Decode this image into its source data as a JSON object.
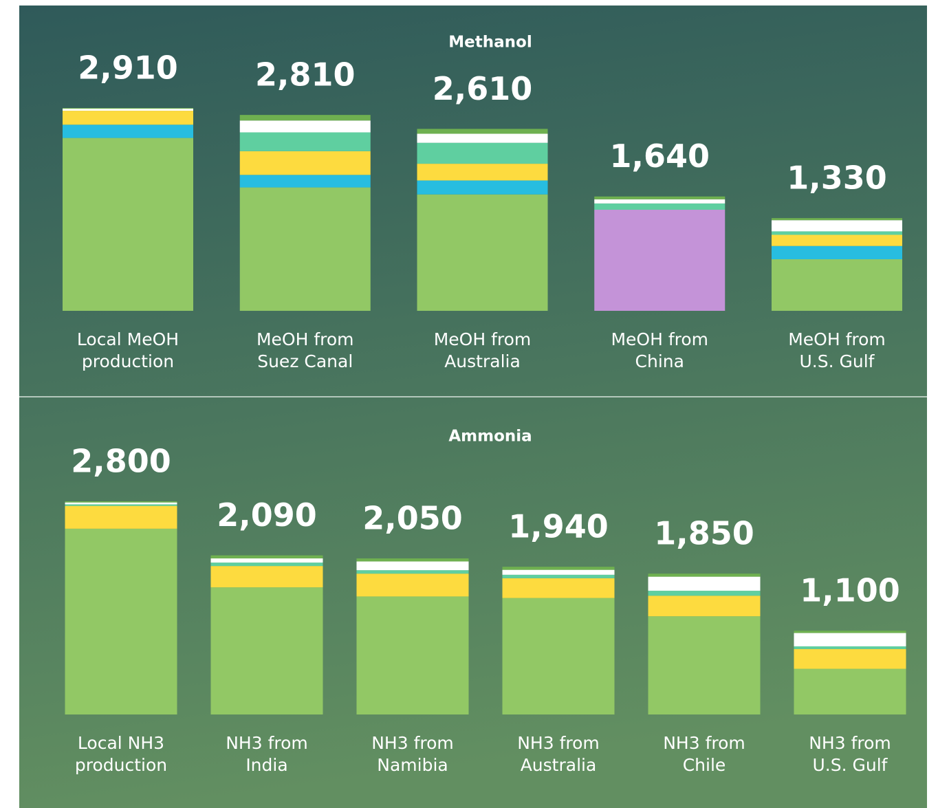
{
  "chart_data": [
    {
      "type": "stacked_bar",
      "title": "Methanol",
      "categories": [
        [
          "Local MeOH",
          "production"
        ],
        [
          "MeOH from",
          "Suez Canal"
        ],
        [
          "MeOH from",
          "Australia"
        ],
        [
          "MeOH from",
          "China"
        ],
        [
          "MeOH from",
          "U.S. Gulf"
        ]
      ],
      "series": [
        {
          "color": "#92c865",
          "values": [
            2480,
            1770,
            1670,
            0,
            740
          ]
        },
        {
          "color": "#c493d8",
          "values": [
            0,
            0,
            0,
            1450,
            0
          ]
        },
        {
          "color": "#27bde0",
          "values": [
            190,
            180,
            200,
            0,
            190
          ]
        },
        {
          "color": "#fddb3f",
          "values": [
            200,
            340,
            240,
            0,
            160
          ]
        },
        {
          "color": "#5fcfa0",
          "values": [
            0,
            270,
            300,
            90,
            50
          ]
        },
        {
          "color": "#ffffff",
          "values": [
            30,
            170,
            130,
            60,
            160
          ]
        },
        {
          "color": "#6fb050",
          "values": [
            10,
            80,
            70,
            40,
            30
          ]
        }
      ],
      "totals": [
        2910,
        2810,
        2610,
        1640,
        1330
      ],
      "total_labels": [
        "2,910",
        "2,810",
        "2,610",
        "1,640",
        "1,330"
      ]
    },
    {
      "type": "stacked_bar",
      "title": "Ammonia",
      "categories": [
        [
          "Local NH3",
          "production"
        ],
        [
          "NH3 from",
          "India"
        ],
        [
          "NH3 from",
          "Namibia"
        ],
        [
          "NH3 from",
          "Australia"
        ],
        [
          "NH3 from",
          "Chile"
        ],
        [
          "NH3 from",
          "U.S. Gulf"
        ]
      ],
      "series": [
        {
          "color": "#92c865",
          "values": [
            2440,
            1670,
            1550,
            1530,
            1290,
            600
          ]
        },
        {
          "color": "#fddb3f",
          "values": [
            300,
            280,
            300,
            260,
            270,
            260
          ]
        },
        {
          "color": "#5fcfa0",
          "values": [
            20,
            45,
            45,
            45,
            65,
            35
          ]
        },
        {
          "color": "#ffffff",
          "values": [
            25,
            55,
            115,
            65,
            185,
            175
          ]
        },
        {
          "color": "#6fb050",
          "values": [
            15,
            40,
            40,
            40,
            40,
            30
          ]
        }
      ],
      "totals": [
        2800,
        2090,
        2050,
        1940,
        1850,
        1100
      ],
      "total_labels": [
        "2,800",
        "2,090",
        "2,050",
        "1,940",
        "1,850",
        "1,100"
      ]
    }
  ]
}
